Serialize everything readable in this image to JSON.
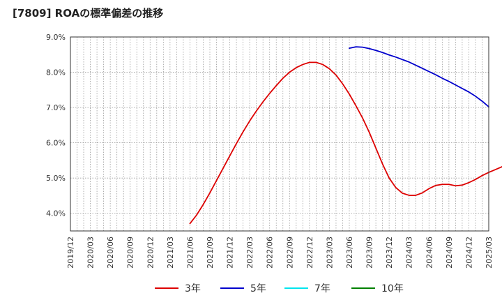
{
  "chart_data": {
    "type": "line",
    "title": "[7809]  ROAの標準偏差の推移",
    "xlabel": "",
    "ylabel": "",
    "x_ticks": [
      "2019/12",
      "2020/03",
      "2020/06",
      "2020/09",
      "2020/12",
      "2021/03",
      "2021/06",
      "2021/09",
      "2021/12",
      "2022/03",
      "2022/06",
      "2022/09",
      "2022/12",
      "2023/03",
      "2023/06",
      "2023/09",
      "2023/12",
      "2024/03",
      "2024/06",
      "2024/09",
      "2024/12",
      "2025/03"
    ],
    "y_ticks": [
      "4.0%",
      "5.0%",
      "6.0%",
      "7.0%",
      "8.0%",
      "9.0%"
    ],
    "ylim": [
      3.5,
      9.0
    ],
    "xlim": [
      "2019/12",
      "2025/03"
    ],
    "grid": true,
    "legend_position": "bottom",
    "series": [
      {
        "name": "3年",
        "color": "#dd0000",
        "points": [
          [
            "2021/06",
            3.71
          ],
          [
            "2021/07",
            3.95
          ],
          [
            "2021/08",
            4.25
          ],
          [
            "2021/09",
            4.58
          ],
          [
            "2021/10",
            4.93
          ],
          [
            "2021/11",
            5.28
          ],
          [
            "2021/12",
            5.63
          ],
          [
            "2022/01",
            5.98
          ],
          [
            "2022/02",
            6.31
          ],
          [
            "2022/03",
            6.62
          ],
          [
            "2022/04",
            6.9
          ],
          [
            "2022/05",
            7.16
          ],
          [
            "2022/06",
            7.4
          ],
          [
            "2022/07",
            7.62
          ],
          [
            "2022/08",
            7.83
          ],
          [
            "2022/09",
            8.0
          ],
          [
            "2022/10",
            8.13
          ],
          [
            "2022/11",
            8.22
          ],
          [
            "2022/12",
            8.28
          ],
          [
            "2023/01",
            8.28
          ],
          [
            "2023/02",
            8.22
          ],
          [
            "2023/03",
            8.1
          ],
          [
            "2023/04",
            7.92
          ],
          [
            "2023/05",
            7.67
          ],
          [
            "2023/06",
            7.38
          ],
          [
            "2023/07",
            7.05
          ],
          [
            "2023/08",
            6.7
          ],
          [
            "2023/09",
            6.3
          ],
          [
            "2023/10",
            5.85
          ],
          [
            "2023/11",
            5.4
          ],
          [
            "2023/12",
            5.0
          ],
          [
            "2024/01",
            4.73
          ],
          [
            "2024/02",
            4.57
          ],
          [
            "2024/03",
            4.51
          ],
          [
            "2024/04",
            4.51
          ],
          [
            "2024/05",
            4.58
          ],
          [
            "2024/06",
            4.7
          ],
          [
            "2024/07",
            4.79
          ],
          [
            "2024/08",
            4.82
          ],
          [
            "2024/09",
            4.82
          ],
          [
            "2024/10",
            4.78
          ],
          [
            "2024/11",
            4.8
          ],
          [
            "2024/12",
            4.87
          ],
          [
            "2025/01",
            4.96
          ],
          [
            "2025/02",
            5.07
          ],
          [
            "2025/03",
            5.16
          ],
          [
            "2025/04",
            5.24
          ],
          [
            "2025/05",
            5.32
          ]
        ]
      },
      {
        "name": "5年",
        "color": "#0000cc",
        "points": [
          [
            "2023/06",
            8.68
          ],
          [
            "2023/07",
            8.72
          ],
          [
            "2023/08",
            8.71
          ],
          [
            "2023/09",
            8.67
          ],
          [
            "2023/10",
            8.62
          ],
          [
            "2023/11",
            8.56
          ],
          [
            "2023/12",
            8.49
          ],
          [
            "2024/01",
            8.43
          ],
          [
            "2024/02",
            8.36
          ],
          [
            "2024/03",
            8.29
          ],
          [
            "2024/04",
            8.2
          ],
          [
            "2024/05",
            8.11
          ],
          [
            "2024/06",
            8.02
          ],
          [
            "2024/07",
            7.93
          ],
          [
            "2024/08",
            7.83
          ],
          [
            "2024/09",
            7.74
          ],
          [
            "2024/10",
            7.64
          ],
          [
            "2024/11",
            7.54
          ],
          [
            "2024/12",
            7.44
          ],
          [
            "2025/01",
            7.32
          ],
          [
            "2025/02",
            7.18
          ],
          [
            "2025/03",
            7.02
          ]
        ]
      },
      {
        "name": "7年",
        "color": "#00e5ee",
        "points": []
      },
      {
        "name": "10年",
        "color": "#008000",
        "points": []
      }
    ]
  }
}
